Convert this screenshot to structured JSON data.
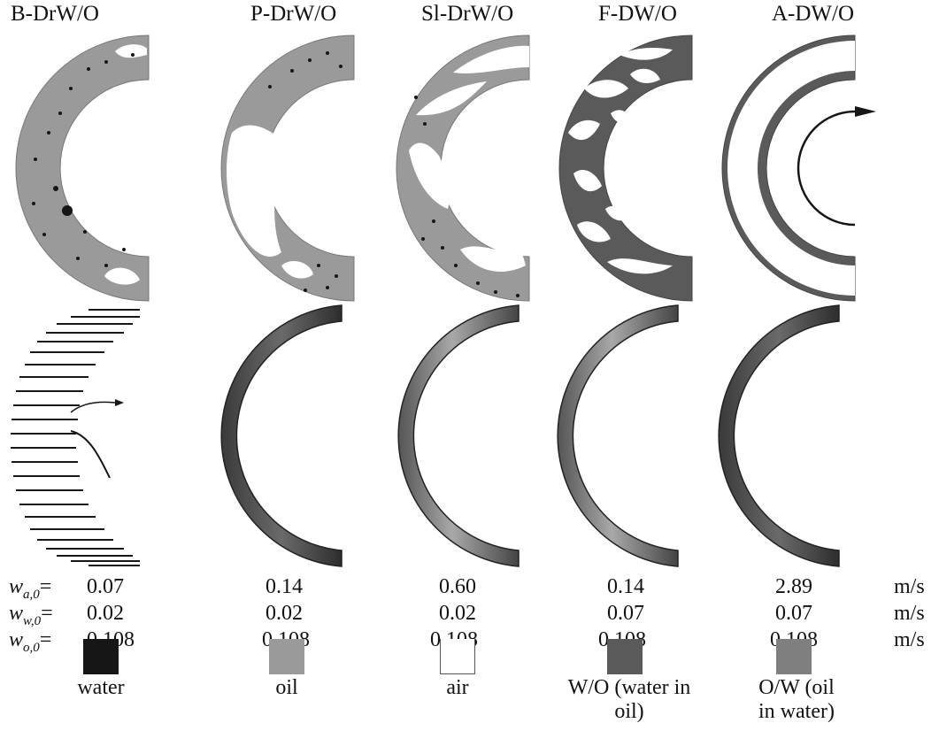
{
  "regimes": [
    {
      "title": "B-DrW/O",
      "wa": "0.07",
      "ww": "0.02",
      "wo": "0.108"
    },
    {
      "title": "P-DrW/O",
      "wa": "0.14",
      "ww": "0.02",
      "wo": "0.108"
    },
    {
      "title": "Sl-DrW/O",
      "wa": "0.60",
      "ww": "0.02",
      "wo": "0.108"
    },
    {
      "title": "F-DW/O",
      "wa": "0.14",
      "ww": "0.07",
      "wo": "0.108"
    },
    {
      "title": "A-DW/O",
      "wa": "2.89",
      "ww": "0.07",
      "wo": "0.108"
    }
  ],
  "params": {
    "wa": {
      "symbol": "w",
      "sub": "a,0",
      "suffix": "="
    },
    "ww": {
      "symbol": "w",
      "sub": "w,0",
      "suffix": "="
    },
    "wo": {
      "symbol": "w",
      "sub": "o,0",
      "suffix": "="
    }
  },
  "unit": "m/s",
  "legend": [
    {
      "label": "water",
      "color": "#161616"
    },
    {
      "label": "oil",
      "color": "#9a9a9a"
    },
    {
      "label": "air",
      "color": "#ffffff"
    },
    {
      "label": "W/O (water in oil)",
      "color": "#5a5a5a"
    },
    {
      "label": "O/W (oil in water)",
      "color": "#7f7f7f"
    }
  ]
}
